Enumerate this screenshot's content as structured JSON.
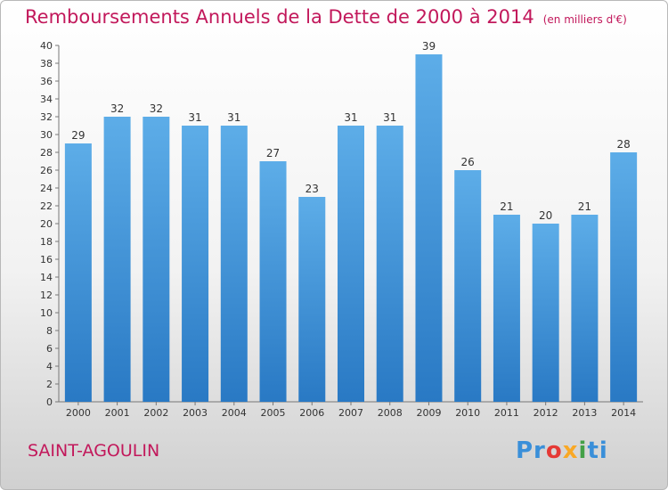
{
  "chart_title": "Remboursements Annuels de la Dette de 2000 à 2014",
  "chart_unit": "(en milliers d'€)",
  "commune": "SAINT-AGOULIN",
  "logo": {
    "parts": [
      "Pr",
      "o",
      "x",
      "i",
      "ti"
    ],
    "text": "Proxiti"
  },
  "colors": {
    "bar_top": "#5dade8",
    "bar_bottom": "#2979c4",
    "title": "#c2185b"
  },
  "chart_data": {
    "type": "bar",
    "title": "Remboursements Annuels de la Dette de 2000 à 2014",
    "subtitle": "(en milliers d'€)",
    "categories": [
      "2000",
      "2001",
      "2002",
      "2003",
      "2004",
      "2005",
      "2006",
      "2007",
      "2008",
      "2009",
      "2010",
      "2011",
      "2012",
      "2013",
      "2014"
    ],
    "values": [
      29,
      32,
      32,
      31,
      31,
      27,
      23,
      31,
      31,
      39,
      26,
      21,
      20,
      21,
      28
    ],
    "ylim": [
      0,
      40
    ],
    "yticks": [
      0,
      2,
      4,
      6,
      8,
      10,
      12,
      14,
      16,
      18,
      20,
      22,
      24,
      26,
      28,
      30,
      32,
      34,
      36,
      38,
      40
    ],
    "grid": false,
    "legend": "none"
  }
}
